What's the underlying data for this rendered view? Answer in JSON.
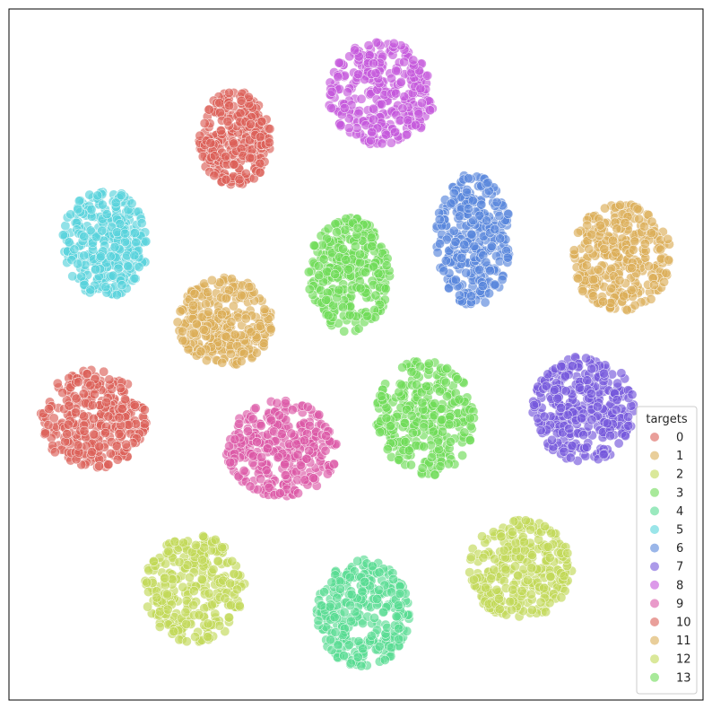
{
  "chart_data": {
    "type": "scatter",
    "title": "",
    "xlabel": "",
    "ylabel": "",
    "axes_ticks_visible": false,
    "legend": {
      "title": "targets",
      "placement": "lower-right"
    },
    "series": [
      {
        "name": "0",
        "color": "#db5f57",
        "cx": 262,
        "cy": 155,
        "rx": 40,
        "ry": 54,
        "points": 300
      },
      {
        "name": "1",
        "color": "#dbae57",
        "cx": 693,
        "cy": 287,
        "rx": 56,
        "ry": 60,
        "points": 300
      },
      {
        "name": "2",
        "color": "#c1d957",
        "cx": 580,
        "cy": 634,
        "rx": 58,
        "ry": 55,
        "points": 300
      },
      {
        "name": "3",
        "color": "#6edb57",
        "cx": 389,
        "cy": 306,
        "rx": 46,
        "ry": 64,
        "points": 300
      },
      {
        "name": "4",
        "color": "#57db92",
        "cx": 405,
        "cy": 683,
        "rx": 52,
        "ry": 60,
        "points": 300
      },
      {
        "name": "5",
        "color": "#57d3db",
        "cx": 117,
        "cy": 271,
        "rx": 48,
        "ry": 60,
        "points": 300
      },
      {
        "name": "6",
        "color": "#5786db",
        "cx": 528,
        "cy": 267,
        "rx": 42,
        "ry": 74,
        "points": 300
      },
      {
        "name": "7",
        "color": "#7457db",
        "cx": 651,
        "cy": 456,
        "rx": 57,
        "ry": 60,
        "points": 300
      },
      {
        "name": "8",
        "color": "#c457db",
        "cx": 425,
        "cy": 104,
        "rx": 60,
        "ry": 58,
        "points": 300
      },
      {
        "name": "9",
        "color": "#db57a6",
        "cx": 314,
        "cy": 500,
        "rx": 62,
        "ry": 54,
        "points": 300
      },
      {
        "name": "10",
        "color": "#db5f57",
        "cx": 105,
        "cy": 467,
        "rx": 60,
        "ry": 55,
        "points": 300
      },
      {
        "name": "11",
        "color": "#dbae57",
        "cx": 251,
        "cy": 358,
        "rx": 53,
        "ry": 50,
        "points": 300
      },
      {
        "name": "12",
        "color": "#c1d957",
        "cx": 217,
        "cy": 656,
        "rx": 56,
        "ry": 60,
        "points": 300
      },
      {
        "name": "13",
        "color": "#6edb57",
        "cx": 474,
        "cy": 466,
        "rx": 55,
        "ry": 65,
        "points": 300
      }
    ]
  }
}
